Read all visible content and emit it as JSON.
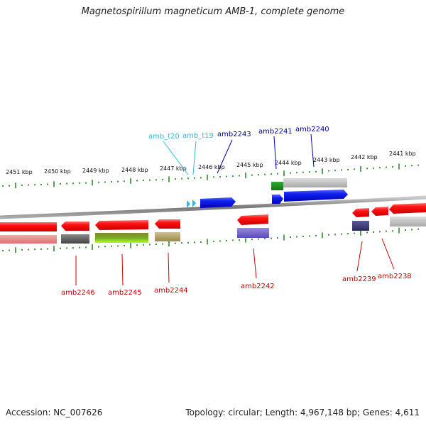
{
  "title": "Magnetospirillum magneticum AMB-1, complete genome",
  "footer": {
    "accession": "Accession: NC_007626",
    "summary": "Topology: circular; Length: 4,967,148 bp; Genes: 4,611"
  },
  "ruler_labels": [
    "2451 kbp",
    "2450 kbp",
    "2449 kbp",
    "2448 kbp",
    "2447 kbp",
    "2446 kbp",
    "2445 kbp",
    "2444 kbp",
    "2443 kbp",
    "2442 kbp",
    "2441 kbp"
  ],
  "gene_labels": {
    "amb_t20": "amb_t20",
    "amb_t19": "amb_t19",
    "amb2243": "amb2243",
    "amb2241": "amb2241",
    "amb2240": "amb2240",
    "amb2246": "amb2246",
    "amb2245": "amb2245",
    "amb2244": "amb2244",
    "amb2242": "amb2242",
    "amb2239": "amb2239",
    "amb2238": "amb2238"
  },
  "colors": {
    "gene_red": "#ee1111",
    "gene_blue": "#1122ee",
    "trna_cyan": "#22bbee",
    "label_red": "#cc0000",
    "label_blue": "#0000aa",
    "label_cyan": "#33bbdd",
    "tick_green": "#117711",
    "backbone": "#888888"
  }
}
